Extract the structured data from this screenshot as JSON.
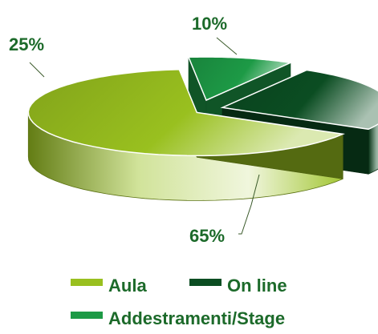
{
  "chart_data": {
    "type": "pie",
    "style": "3d-exploded",
    "title": "",
    "legend_position": "bottom",
    "series": [
      {
        "name": "Aula",
        "value": 65,
        "label": "65%",
        "color": "#99c01f"
      },
      {
        "name": "Addestramenti/Stage",
        "value": 10,
        "label": "10%",
        "color": "#1d9a46"
      },
      {
        "name": "On line",
        "value": 25,
        "label": "25%",
        "color": "#0b4d22"
      }
    ],
    "label_color": "#1c6a2a"
  }
}
